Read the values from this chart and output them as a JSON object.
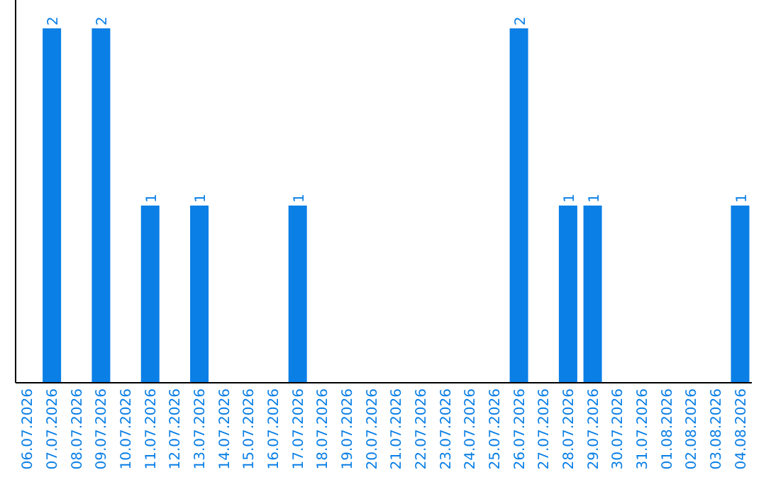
{
  "chart_data": {
    "type": "bar",
    "categories": [
      "06.07.2026",
      "07.07.2026",
      "08.07.2026",
      "09.07.2026",
      "10.07.2026",
      "11.07.2026",
      "12.07.2026",
      "13.07.2026",
      "14.07.2026",
      "15.07.2026",
      "16.07.2026",
      "17.07.2026",
      "18.07.2026",
      "19.07.2026",
      "20.07.2026",
      "21.07.2026",
      "22.07.2026",
      "23.07.2026",
      "24.07.2026",
      "25.07.2026",
      "26.07.2026",
      "27.07.2026",
      "28.07.2026",
      "29.07.2026",
      "30.07.2026",
      "31.07.2026",
      "01.08.2026",
      "02.08.2026",
      "03.08.2026",
      "04.08.2026"
    ],
    "values": [
      0,
      2,
      0,
      2,
      0,
      1,
      0,
      1,
      0,
      0,
      0,
      1,
      0,
      0,
      0,
      0,
      0,
      0,
      0,
      0,
      2,
      0,
      1,
      1,
      0,
      0,
      0,
      0,
      0,
      1
    ],
    "value_labels": [
      null,
      "2",
      null,
      "2",
      null,
      "1",
      null,
      "1",
      null,
      null,
      null,
      "1",
      null,
      null,
      null,
      null,
      null,
      null,
      null,
      null,
      "2",
      null,
      "1",
      "1",
      null,
      null,
      null,
      null,
      null,
      "1"
    ],
    "color": "#0a7fe6"
  }
}
